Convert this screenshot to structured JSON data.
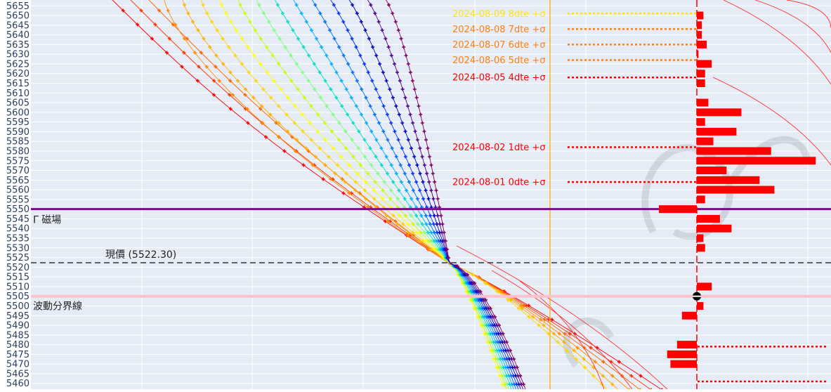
{
  "chart_data": {
    "type": "line",
    "y_range": [
      5457,
      5658
    ],
    "y_ticks": [
      5460,
      5465,
      5470,
      5475,
      5480,
      5485,
      5490,
      5495,
      5500,
      5505,
      5510,
      5515,
      5520,
      5525,
      5530,
      5535,
      5540,
      5545,
      5550,
      5555,
      5560,
      5565,
      5570,
      5575,
      5580,
      5585,
      5590,
      5595,
      5600,
      5605,
      5610,
      5615,
      5620,
      5625,
      5630,
      5635,
      5640,
      5645,
      5650,
      5655
    ],
    "y_tick_labels": [
      "5460",
      "5465",
      "5470",
      "5475",
      "5480",
      "5485",
      "5490",
      "5495",
      "5500",
      "5505",
      "5510",
      "5515",
      "5520",
      "5525",
      "5530",
      "5535",
      "5540",
      "5545",
      "5550",
      "5555",
      "5560",
      "5565",
      "5570",
      "5575",
      "5580",
      "5585",
      "5590",
      "5595",
      "5600",
      "5605",
      "5610",
      "5615",
      "5620",
      "5625",
      "5630",
      "5635",
      "5640",
      "5645",
      "5650",
      "5655"
    ],
    "gamma_magnet": {
      "label": "Γ 磁場",
      "value": 5550,
      "color": "#7b0a8a"
    },
    "current_price": {
      "label": "現價 (5522.30)",
      "value": 5522.3,
      "color": "#333333"
    },
    "volatility_boundary": {
      "label": "波動分界線",
      "value": 5505,
      "color": "#ffc0cb"
    },
    "expiry_sigma": [
      {
        "label": "2024-08-09 8dte +σ",
        "value": 5651,
        "color": "#ffe600"
      },
      {
        "label": "2024-08-08 7dte +σ",
        "value": 5643,
        "color": "#ff7f0e"
      },
      {
        "label": "2024-08-07 6dte +σ",
        "value": 5635,
        "color": "#ff7f0e"
      },
      {
        "label": "2024-08-06 5dte +σ",
        "value": 5627,
        "color": "#ff7f0e"
      },
      {
        "label": "2024-08-05 4dte +σ",
        "value": 5618,
        "color": "#ff0000"
      },
      {
        "label": "2024-08-02 1dte +σ",
        "value": 5582,
        "color": "#ff0000"
      },
      {
        "label": "2024-08-01 0dte +σ",
        "value": 5564,
        "color": "#ff0000"
      }
    ],
    "lower_sigma_values": [
      5479,
      5461
    ],
    "gamma_exposure_bars": [
      {
        "strike": 5650,
        "value": 0.4
      },
      {
        "strike": 5645,
        "value": 0.3
      },
      {
        "strike": 5640,
        "value": 0.3
      },
      {
        "strike": 5635,
        "value": 0.6
      },
      {
        "strike": 5630,
        "value": 0.1
      },
      {
        "strike": 5625,
        "value": 0.9
      },
      {
        "strike": 5620,
        "value": 0.5
      },
      {
        "strike": 5615,
        "value": 0.5
      },
      {
        "strike": 5605,
        "value": 0.7
      },
      {
        "strike": 5600,
        "value": 2.7
      },
      {
        "strike": 5595,
        "value": 0.5
      },
      {
        "strike": 5590,
        "value": 2.4
      },
      {
        "strike": 5585,
        "value": 1.0
      },
      {
        "strike": 5580,
        "value": 4.5
      },
      {
        "strike": 5575,
        "value": 7.2
      },
      {
        "strike": 5570,
        "value": 1.8
      },
      {
        "strike": 5565,
        "value": 3.8
      },
      {
        "strike": 5560,
        "value": 4.7
      },
      {
        "strike": 5555,
        "value": 0.5
      },
      {
        "strike": 5550,
        "value": -2.3
      },
      {
        "strike": 5545,
        "value": 1.4
      },
      {
        "strike": 5540,
        "value": 2.1
      },
      {
        "strike": 5535,
        "value": 0.4
      },
      {
        "strike": 5530,
        "value": 0.5
      },
      {
        "strike": 5510,
        "value": 0.9
      },
      {
        "strike": 5500,
        "value": 0.4
      },
      {
        "strike": 5495,
        "value": -0.9
      },
      {
        "strike": 5480,
        "value": -1.2
      },
      {
        "strike": 5475,
        "value": -1.8
      },
      {
        "strike": 5470,
        "value": -1.6
      }
    ],
    "curve_colors": [
      "#ff0000",
      "#ff3300",
      "#ff6600",
      "#ff8c00",
      "#ffb000",
      "#ffd700",
      "#ffff00",
      "#c8ff00",
      "#7fff7f",
      "#00e0c0",
      "#00b0ff",
      "#0070ff",
      "#0030ff",
      "#0000c0",
      "#500090",
      "#800060"
    ],
    "grid": true
  }
}
